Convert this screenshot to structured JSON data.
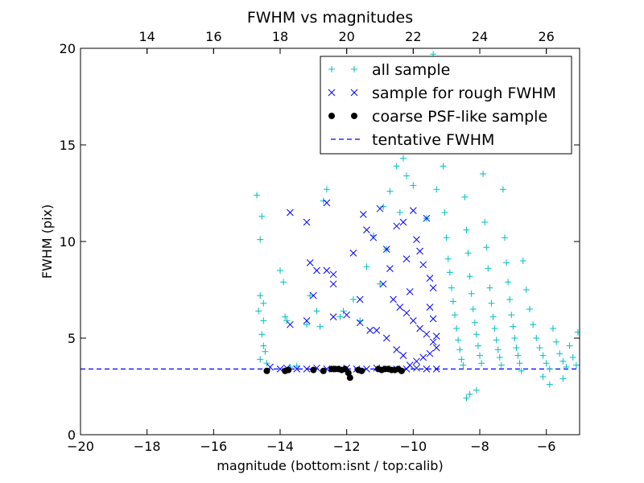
{
  "chart_data": {
    "type": "scatter",
    "title": "FWHM vs magnitudes",
    "xlabel": "magnitude (bottom:isnt / top:calib)",
    "ylabel": "FWHM (pix)",
    "xlim": [
      -20,
      -5
    ],
    "ylim": [
      0,
      20
    ],
    "x_ticks": [
      -20,
      -18,
      -16,
      -14,
      -12,
      -10,
      -8,
      -6
    ],
    "x_tick_labels": [
      "−20",
      "−18",
      "−16",
      "−14",
      "−12",
      "−10",
      "−8",
      "−6"
    ],
    "y_ticks": [
      0,
      5,
      10,
      15,
      20
    ],
    "y_tick_labels": [
      "0",
      "5",
      "10",
      "15",
      "20"
    ],
    "top_axis": {
      "offset": 32,
      "ticks": [
        14,
        16,
        18,
        20,
        22,
        24,
        26
      ],
      "tick_labels": [
        "14",
        "16",
        "18",
        "20",
        "22",
        "24",
        "26"
      ]
    },
    "grid": false,
    "legend_position": "top-right",
    "series": [
      {
        "name": "all sample",
        "marker": "plus",
        "color": "#00bfbf",
        "points": [
          [
            -14.7,
            12.4
          ],
          [
            -14.6,
            10.1
          ],
          [
            -14.55,
            11.3
          ],
          [
            -14.6,
            7.2
          ],
          [
            -14.5,
            6.8
          ],
          [
            -14.65,
            6.4
          ],
          [
            -14.5,
            5.9
          ],
          [
            -14.55,
            5.2
          ],
          [
            -14.5,
            4.6
          ],
          [
            -14.45,
            4.3
          ],
          [
            -14.6,
            3.9
          ],
          [
            -14.4,
            3.7
          ],
          [
            -14.0,
            8.5
          ],
          [
            -13.9,
            7.9
          ],
          [
            -13.85,
            6.1
          ],
          [
            -13.8,
            5.9
          ],
          [
            -13.7,
            3.5
          ],
          [
            -13.5,
            3.55
          ],
          [
            -13.2,
            5.7
          ],
          [
            -13.1,
            7.2
          ],
          [
            -12.9,
            6.4
          ],
          [
            -12.8,
            5.6
          ],
          [
            -12.6,
            12.7
          ],
          [
            -12.7,
            12.1
          ],
          [
            -12.2,
            6.1
          ],
          [
            -12.1,
            6.4
          ],
          [
            -11.8,
            7.0
          ],
          [
            -11.6,
            5.9
          ],
          [
            -11.4,
            8.7
          ],
          [
            -11.2,
            10.3
          ],
          [
            -11.0,
            7.8
          ],
          [
            -10.9,
            11.8
          ],
          [
            -10.8,
            9.6
          ],
          [
            -10.7,
            12.6
          ],
          [
            -10.5,
            13.9
          ],
          [
            -10.4,
            11.5
          ],
          [
            -10.3,
            14.3
          ],
          [
            -10.2,
            13.4
          ],
          [
            -10.1,
            16.0
          ],
          [
            -10.0,
            12.9
          ],
          [
            -9.9,
            16.9
          ],
          [
            -9.8,
            18.6
          ],
          [
            -9.7,
            15.0
          ],
          [
            -9.6,
            11.2
          ],
          [
            -9.5,
            14.7
          ],
          [
            -9.4,
            19.7
          ],
          [
            -9.3,
            12.7
          ],
          [
            -9.2,
            17.2
          ],
          [
            -9.1,
            13.9
          ],
          [
            -9.05,
            11.5
          ],
          [
            -9.0,
            10.2
          ],
          [
            -8.95,
            9.1
          ],
          [
            -8.9,
            8.4
          ],
          [
            -8.85,
            7.6
          ],
          [
            -8.8,
            6.9
          ],
          [
            -8.75,
            6.2
          ],
          [
            -8.7,
            5.5
          ],
          [
            -8.65,
            4.9
          ],
          [
            -8.6,
            4.4
          ],
          [
            -8.55,
            3.9
          ],
          [
            -8.5,
            3.6
          ],
          [
            -8.45,
            12.3
          ],
          [
            -8.4,
            10.6
          ],
          [
            -8.35,
            9.4
          ],
          [
            -8.3,
            8.2
          ],
          [
            -8.25,
            7.3
          ],
          [
            -8.2,
            6.5
          ],
          [
            -8.15,
            5.8
          ],
          [
            -8.1,
            5.2
          ],
          [
            -8.05,
            4.6
          ],
          [
            -8.0,
            4.1
          ],
          [
            -7.95,
            3.7
          ],
          [
            -7.9,
            13.5
          ],
          [
            -7.85,
            11.0
          ],
          [
            -7.8,
            9.7
          ],
          [
            -7.75,
            8.6
          ],
          [
            -7.7,
            7.6
          ],
          [
            -7.65,
            6.8
          ],
          [
            -7.6,
            6.1
          ],
          [
            -7.55,
            5.5
          ],
          [
            -7.5,
            4.9
          ],
          [
            -7.45,
            4.4
          ],
          [
            -7.4,
            4.0
          ],
          [
            -7.35,
            3.6
          ],
          [
            -7.3,
            12.7
          ],
          [
            -7.25,
            10.2
          ],
          [
            -7.2,
            8.9
          ],
          [
            -7.15,
            7.9
          ],
          [
            -7.1,
            7.0
          ],
          [
            -7.05,
            6.2
          ],
          [
            -7.0,
            5.6
          ],
          [
            -6.95,
            5.0
          ],
          [
            -6.9,
            4.5
          ],
          [
            -6.85,
            4.1
          ],
          [
            -6.8,
            3.7
          ],
          [
            -6.75,
            3.3
          ],
          [
            -6.7,
            9.0
          ],
          [
            -6.6,
            7.5
          ],
          [
            -6.5,
            6.5
          ],
          [
            -6.4,
            5.7
          ],
          [
            -6.3,
            5.0
          ],
          [
            -6.2,
            4.5
          ],
          [
            -6.1,
            4.1
          ],
          [
            -6.0,
            3.7
          ],
          [
            -5.9,
            3.4
          ],
          [
            -5.8,
            5.5
          ],
          [
            -5.7,
            4.8
          ],
          [
            -5.6,
            4.2
          ],
          [
            -5.5,
            3.8
          ],
          [
            -5.4,
            3.5
          ],
          [
            -5.3,
            4.6
          ],
          [
            -5.2,
            4.0
          ],
          [
            -5.1,
            3.6
          ],
          [
            -5.05,
            5.3
          ],
          [
            -8.3,
            2.1
          ],
          [
            -8.1,
            2.3
          ],
          [
            -8.4,
            1.9
          ],
          [
            -6.1,
            3.0
          ],
          [
            -5.9,
            2.6
          ],
          [
            -5.5,
            2.9
          ]
        ]
      },
      {
        "name": "sample for rough FWHM",
        "marker": "x",
        "color": "#0000ff",
        "points": [
          [
            -13.7,
            11.5
          ],
          [
            -13.2,
            11.0
          ],
          [
            -13.1,
            8.9
          ],
          [
            -13.0,
            7.2
          ],
          [
            -12.6,
            12.0
          ],
          [
            -12.6,
            8.5
          ],
          [
            -12.9,
            8.5
          ],
          [
            -12.4,
            8.3
          ],
          [
            -12.4,
            7.8
          ],
          [
            -11.8,
            9.4
          ],
          [
            -11.6,
            7.0
          ],
          [
            -11.4,
            10.6
          ],
          [
            -11.2,
            10.2
          ],
          [
            -11.5,
            11.4
          ],
          [
            -11.0,
            11.7
          ],
          [
            -10.8,
            9.6
          ],
          [
            -10.9,
            7.8
          ],
          [
            -10.5,
            10.8
          ],
          [
            -10.3,
            11.0
          ],
          [
            -10.2,
            9.1
          ],
          [
            -10.0,
            11.6
          ],
          [
            -9.9,
            10.1
          ],
          [
            -9.8,
            9.5
          ],
          [
            -9.7,
            8.8
          ],
          [
            -9.6,
            11.2
          ],
          [
            -9.5,
            8.1
          ],
          [
            -9.4,
            7.6
          ],
          [
            -10.7,
            8.6
          ],
          [
            -10.6,
            7.0
          ],
          [
            -10.4,
            6.6
          ],
          [
            -10.2,
            6.3
          ],
          [
            -10.0,
            5.9
          ],
          [
            -9.8,
            5.5
          ],
          [
            -9.6,
            5.2
          ],
          [
            -9.4,
            4.8
          ],
          [
            -9.3,
            4.5
          ],
          [
            -9.5,
            4.2
          ],
          [
            -9.7,
            4.0
          ],
          [
            -9.9,
            3.8
          ],
          [
            -10.1,
            3.6
          ],
          [
            -10.3,
            4.1
          ],
          [
            -10.5,
            4.4
          ],
          [
            -10.8,
            5.0
          ],
          [
            -11.1,
            5.4
          ],
          [
            -11.3,
            5.4
          ],
          [
            -11.6,
            5.8
          ],
          [
            -12.0,
            6.2
          ],
          [
            -12.4,
            6.1
          ],
          [
            -13.2,
            5.9
          ],
          [
            -13.7,
            5.7
          ],
          [
            -14.3,
            3.5
          ],
          [
            -14.0,
            3.4
          ],
          [
            -13.8,
            3.45
          ],
          [
            -13.5,
            3.4
          ],
          [
            -13.2,
            3.4
          ],
          [
            -12.9,
            3.45
          ],
          [
            -12.6,
            3.4
          ],
          [
            -12.3,
            3.4
          ],
          [
            -12.0,
            3.45
          ],
          [
            -11.7,
            3.4
          ],
          [
            -11.4,
            3.4
          ],
          [
            -11.1,
            3.45
          ],
          [
            -10.8,
            3.4
          ],
          [
            -10.5,
            3.4
          ],
          [
            -10.2,
            3.4
          ],
          [
            -9.9,
            3.45
          ],
          [
            -9.6,
            3.4
          ],
          [
            -9.3,
            3.4
          ],
          [
            -10.1,
            7.4
          ],
          [
            -9.5,
            6.6
          ],
          [
            -9.4,
            6.0
          ],
          [
            -9.3,
            5.1
          ]
        ]
      },
      {
        "name": "coarse PSF-like sample",
        "marker": "dot",
        "color": "#000000",
        "points": [
          [
            -14.4,
            3.3
          ],
          [
            -13.85,
            3.3
          ],
          [
            -13.75,
            3.35
          ],
          [
            -13.0,
            3.35
          ],
          [
            -12.7,
            3.3
          ],
          [
            -12.45,
            3.4
          ],
          [
            -12.35,
            3.4
          ],
          [
            -12.25,
            3.4
          ],
          [
            -12.15,
            3.35
          ],
          [
            -12.05,
            3.4
          ],
          [
            -11.95,
            3.2
          ],
          [
            -11.9,
            2.95
          ],
          [
            -11.65,
            3.35
          ],
          [
            -11.55,
            3.3
          ],
          [
            -11.05,
            3.4
          ],
          [
            -10.95,
            3.35
          ],
          [
            -10.85,
            3.4
          ],
          [
            -10.75,
            3.4
          ],
          [
            -10.65,
            3.35
          ],
          [
            -10.55,
            3.35
          ],
          [
            -10.45,
            3.4
          ],
          [
            -10.35,
            3.3
          ]
        ]
      },
      {
        "name": "tentative FWHM",
        "marker": "dashed-line",
        "color": "#0000ff",
        "y": 3.4
      }
    ]
  }
}
